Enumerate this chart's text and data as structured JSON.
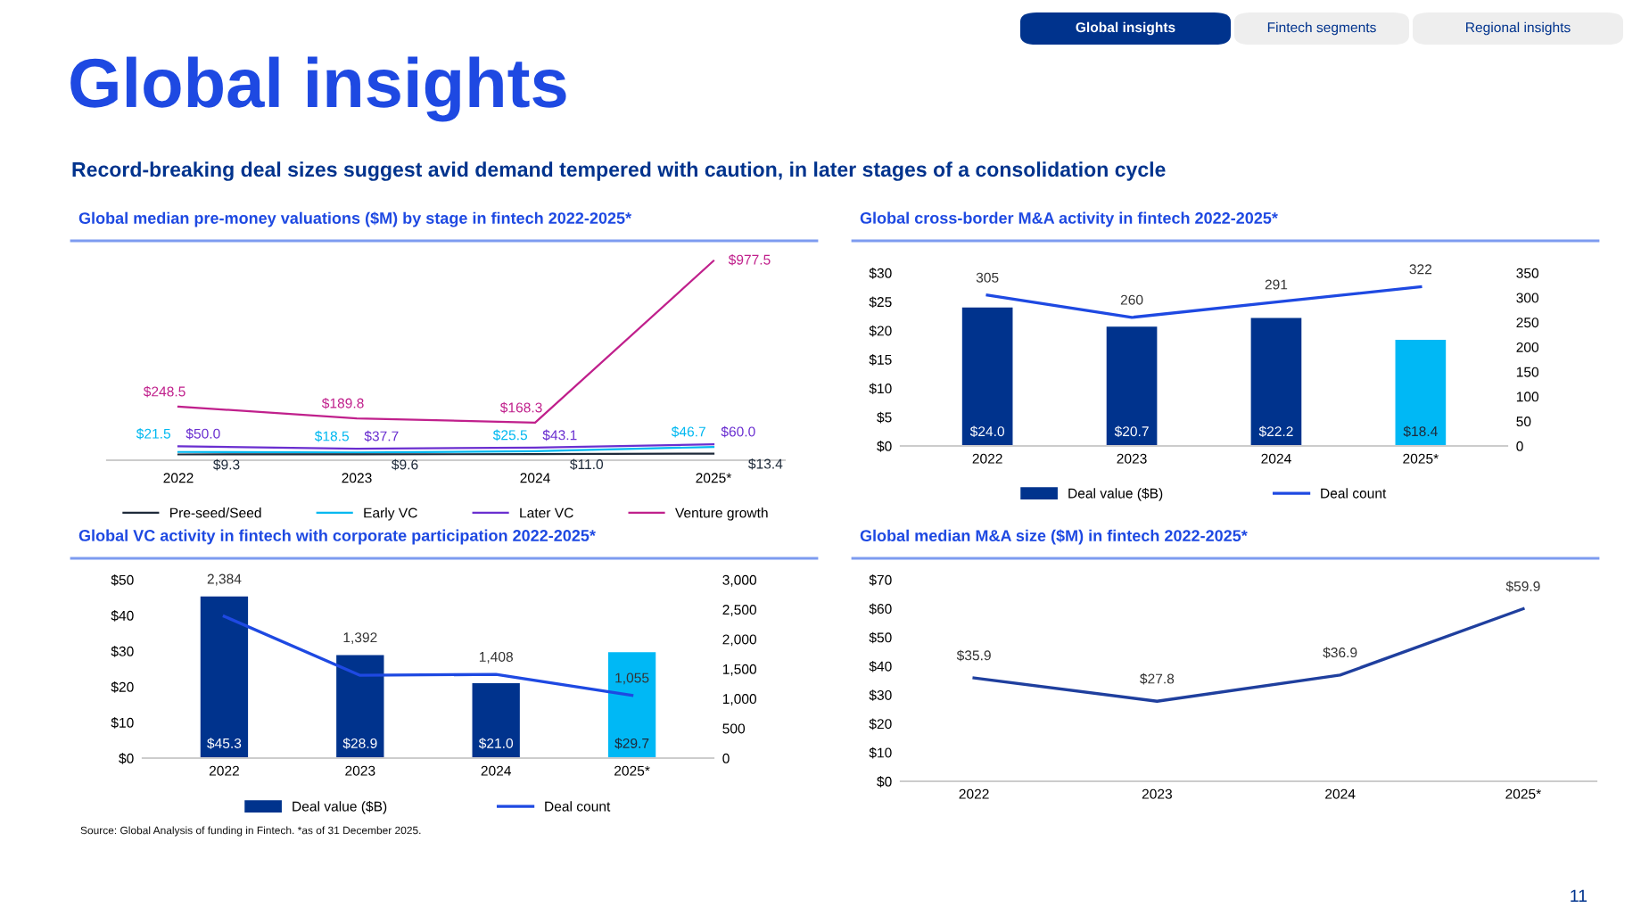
{
  "chart_data": [
    {
      "type": "line",
      "title": "Global median pre-money valuations ($M) by stage in fintech 2022-2025*",
      "categories": [
        "2022",
        "2023",
        "2024",
        "2025*"
      ],
      "data_labels": true,
      "legend": "bottom",
      "tick_labels": "x",
      "series": [
        {
          "name": "Pre-seed/Seed",
          "color": "#1e2a3a",
          "values": [
            9.3,
            9.6,
            11.0,
            13.4
          ],
          "value_labels": [
            "$9.3",
            "$9.6",
            "$11.0",
            "$13.4"
          ]
        },
        {
          "name": "Early VC",
          "color": "#00b8f0",
          "values": [
            21.5,
            18.5,
            25.5,
            46.7
          ],
          "value_labels": [
            "$21.5",
            "$18.5",
            "$25.5",
            "$46.7"
          ]
        },
        {
          "name": "Later VC",
          "color": "#6a2fd0",
          "values": [
            50.0,
            37.7,
            43.1,
            60.0
          ],
          "value_labels": [
            "$50.0",
            "$37.7",
            "$43.1",
            "$60.0"
          ]
        },
        {
          "name": "Venture growth",
          "color": "#c0208c",
          "values": [
            248.5,
            189.8,
            168.3,
            977.5
          ],
          "value_labels": [
            "$248.5",
            "$189.8",
            "$168.3",
            "$977.5"
          ]
        }
      ],
      "annotations": [
        "Global insights",
        "Record-breaking deal sizes suggest avid demand tempered with caution, in later stages of a consolidation cycle",
        "Global insights",
        "Fintech segments",
        "Regional insights",
        "Source: Global Analysis of funding in Fintech. *as of 31 December 2025.",
        "11"
      ]
    },
    {
      "type": "bar",
      "title": "Global cross-border M&A activity in fintech 2022-2025*",
      "categories": [
        "2022",
        "2023",
        "2024",
        "2025*"
      ],
      "data_labels": true,
      "legend": "bottom",
      "ylim": [
        0,
        30
      ],
      "yticks": [
        {
          "value": 0,
          "label": "$0"
        },
        {
          "value": 5,
          "label": "$5"
        },
        {
          "value": 10,
          "label": "$10"
        },
        {
          "value": 15,
          "label": "$15"
        },
        {
          "value": 20,
          "label": "$20"
        },
        {
          "value": 25,
          "label": "$25"
        },
        {
          "value": 30,
          "label": "$30"
        }
      ],
      "y2lim": [
        0,
        350
      ],
      "y2ticks": [
        0,
        50,
        100,
        150,
        200,
        250,
        300,
        350
      ],
      "series": [
        {
          "name": "Deal value ($B)",
          "colors": [
            "#00338d",
            "#00338d",
            "#00338d",
            "#00b8f5"
          ],
          "values": [
            24.0,
            20.7,
            22.2,
            18.4
          ],
          "value_labels": [
            "$24.0",
            "$20.7",
            "$22.2",
            "$18.4"
          ]
        },
        {
          "name": "Deal count",
          "type": "line",
          "axis": "y2",
          "color": "#1e49e2",
          "values": [
            305,
            260,
            291,
            322
          ]
        }
      ]
    },
    {
      "type": "bar",
      "title": "Global VC activity in fintech with corporate participation 2022-2025*",
      "categories": [
        "2022",
        "2023",
        "2024",
        "2025*"
      ],
      "data_labels": true,
      "legend": "bottom",
      "ylim": [
        0,
        50
      ],
      "yticks": [
        {
          "value": 0,
          "label": "$0"
        },
        {
          "value": 10,
          "label": "$10"
        },
        {
          "value": 20,
          "label": "$20"
        },
        {
          "value": 30,
          "label": "$30"
        },
        {
          "value": 40,
          "label": "$40"
        },
        {
          "value": 50,
          "label": "$50"
        }
      ],
      "y2lim": [
        0,
        3000
      ],
      "y2ticks": [
        0,
        500,
        {
          "value": 1000,
          "label": "1,000"
        },
        {
          "value": 1500,
          "label": "1,500"
        },
        {
          "value": 2000,
          "label": "2,000"
        },
        {
          "value": 2500,
          "label": "2,500"
        },
        {
          "value": 3000,
          "label": "3,000"
        }
      ],
      "series": [
        {
          "name": "Deal value ($B)",
          "colors": [
            "#00338d",
            "#00338d",
            "#00338d",
            "#00b8f5"
          ],
          "values": [
            45.3,
            28.9,
            21.0,
            29.7
          ],
          "value_labels": [
            "$45.3",
            "$28.9",
            "$21.0",
            "$29.7"
          ]
        },
        {
          "name": "Deal count",
          "type": "line",
          "axis": "y2",
          "color": "#1e49e2",
          "values": [
            2384,
            1392,
            1408,
            1055
          ],
          "value_labels": [
            "2,384",
            "1,392",
            "1,408",
            "1,055"
          ]
        }
      ]
    },
    {
      "type": "line",
      "title": "Global median M&A size ($M) in fintech 2022-2025*",
      "categories": [
        "2022",
        "2023",
        "2024",
        "2025*"
      ],
      "data_labels": true,
      "ylim": [
        0,
        70
      ],
      "yticks": [
        {
          "value": 0,
          "label": "$0"
        },
        {
          "value": 10,
          "label": "$10"
        },
        {
          "value": 20,
          "label": "$20"
        },
        {
          "value": 30,
          "label": "$30"
        },
        {
          "value": 40,
          "label": "$40"
        },
        {
          "value": 50,
          "label": "$50"
        },
        {
          "value": 60,
          "label": "$60"
        },
        {
          "value": 70,
          "label": "$70"
        }
      ],
      "series": [
        {
          "color": "#1f3f9e",
          "values": [
            35.9,
            27.8,
            36.9,
            59.9
          ],
          "value_labels": [
            "$35.9",
            "$27.8",
            "$36.9",
            "$59.9"
          ]
        }
      ]
    }
  ]
}
